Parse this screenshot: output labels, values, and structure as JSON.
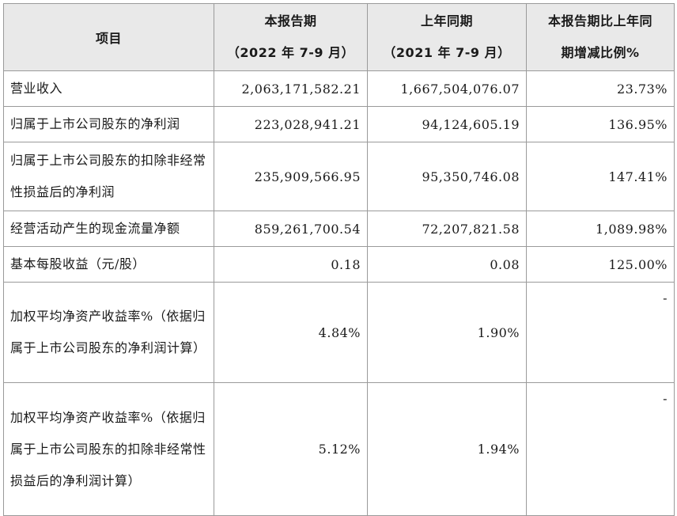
{
  "header": {
    "item": "项目",
    "current_line1": "本报告期",
    "current_line2": "（2022 年 7-9 月）",
    "prior_line1": "上年同期",
    "prior_line2": "（2021 年 7-9 月）",
    "change_line1": "本报告期比上年同",
    "change_line2": "期增减比例%"
  },
  "rows": [
    {
      "item": "营业收入",
      "current": "2,063,171,582.21",
      "prior": "1,667,504,076.07",
      "change": "23.73%"
    },
    {
      "item": "归属于上市公司股东的净利润",
      "current": "223,028,941.21",
      "prior": "94,124,605.19",
      "change": "136.95%"
    },
    {
      "item": "归属于上市公司股东的扣除非经常性损益后的净利润",
      "current": "235,909,566.95",
      "prior": "95,350,746.08",
      "change": "147.41%"
    },
    {
      "item": "经营活动产生的现金流量净额",
      "current": "859,261,700.54",
      "prior": "72,207,821.58",
      "change": "1,089.98%"
    },
    {
      "item": "基本每股收益（元/股）",
      "current": "0.18",
      "prior": "0.08",
      "change": "125.00%"
    },
    {
      "item": "加权平均净资产收益率%（依据归属于上市公司股东的净利润计算）",
      "current": "4.84%",
      "prior": "1.90%",
      "change": "-"
    },
    {
      "item": "加权平均净资产收益率%（依据归属于上市公司股东的扣除非经常性损益后的净利润计算）",
      "current": "5.12%",
      "prior": "1.94%",
      "change": "-"
    }
  ]
}
